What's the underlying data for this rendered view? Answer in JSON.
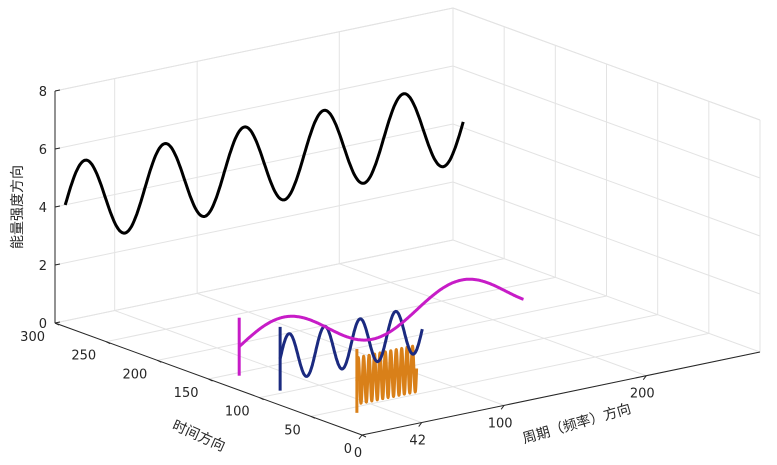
{
  "chart_data": {
    "type": "line3d",
    "title": "",
    "xlabel": "周期（频率）方向",
    "ylabel": "时间方向",
    "zlabel": "能量强度方向",
    "xlim": [
      0,
      280
    ],
    "ylim": [
      0,
      300
    ],
    "zlim": [
      0,
      8
    ],
    "x_ticks": [
      "0",
      "42",
      "100",
      "200"
    ],
    "y_ticks": [
      "0",
      "50",
      "100",
      "150",
      "200",
      "250",
      "300"
    ],
    "z_ticks": [
      "0",
      "2",
      "4",
      "6",
      "8"
    ],
    "grid": true,
    "series": [
      {
        "color": "#d98019",
        "y": 5,
        "x": [
          0,
          42
        ],
        "offset": 1.8,
        "amplitude": 0.8,
        "cycles": 11
      },
      {
        "color": "#1b2a80",
        "y": 80,
        "x": [
          0,
          100
        ],
        "offset": 1.6,
        "amplitude": 0.8,
        "cycles": 4
      },
      {
        "color": "#c71cc7",
        "y": 120,
        "x": [
          0,
          200
        ],
        "offset": 1.5,
        "amplitude": 0.7,
        "cycles": 1.6
      },
      {
        "color": "#000000",
        "y": 290,
        "x": [
          0,
          280
        ],
        "offset": 4.2,
        "amplitude": 1.4,
        "cycles": 5
      }
    ]
  }
}
